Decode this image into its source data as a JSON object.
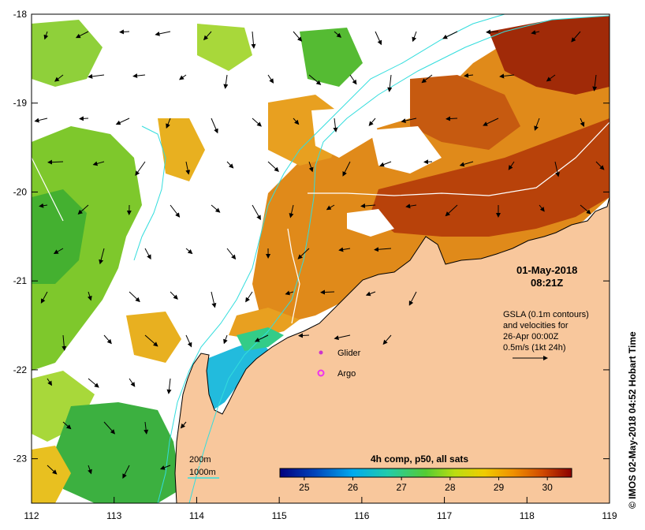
{
  "map": {
    "lon_min": 112,
    "lon_max": 119,
    "lat_min": -23.5,
    "lat_max": -18,
    "x_ticks": [
      "112",
      "113",
      "114",
      "115",
      "116",
      "117",
      "118",
      "119"
    ],
    "y_ticks": [
      "-18",
      "-19",
      "-20",
      "-21",
      "-22",
      "-23"
    ],
    "land_color": "#f8c79c",
    "bathy_color": "#33dddd"
  },
  "annotations": {
    "date": "01-May-2018",
    "time": "08:21Z",
    "gsla_line1": "GSLA (0.1m contours)",
    "gsla_line2": "and velocities for",
    "gsla_line3": "26-Apr 00:00Z",
    "gsla_line4": "0.5m/s (1kt 24h)"
  },
  "legend": {
    "glider": "Glider",
    "argo": "Argo",
    "glider_color": "#cc33cc",
    "argo_color": "#ee33ee",
    "bathy_200": "200m",
    "bathy_1000": "1000m"
  },
  "colorbar": {
    "title": "4h comp, p50, all sats",
    "ticks": [
      "25",
      "26",
      "27",
      "28",
      "29",
      "30"
    ],
    "min": 24.5,
    "max": 30.5,
    "colors": [
      "#00007f",
      "#0055cc",
      "#00aaee",
      "#22ccbb",
      "#33cc66",
      "#66cc22",
      "#aadd11",
      "#ddcc11",
      "#f0aa00",
      "#e07000",
      "#c03a00",
      "#8b0000"
    ]
  },
  "credit": "© IMOS 02-May-2018 04:52 Hobart Time"
}
